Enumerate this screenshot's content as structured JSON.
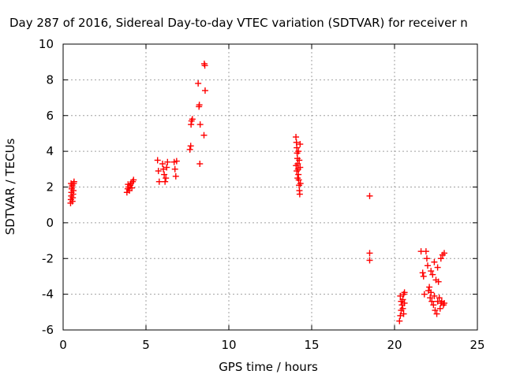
{
  "chart_data": {
    "type": "scatter",
    "title": "Day 287 of 2016, Sidereal Day-to-day VTEC variation (SDTVAR) for receiver n",
    "xlabel": "GPS time / hours",
    "ylabel": "SDTVAR / TECUs",
    "xlim": [
      0,
      25
    ],
    "ylim": [
      -6,
      10
    ],
    "xticks": [
      "0",
      "5",
      "10",
      "15",
      "20",
      "25"
    ],
    "yticks": [
      "-6",
      "-4",
      "-2",
      "0",
      "2",
      "4",
      "6",
      "8",
      "10"
    ],
    "grid": true,
    "marker_color": "#ff0000",
    "marker": "+",
    "series": [
      {
        "name": "SDTVAR",
        "points": [
          [
            0.45,
            1.1
          ],
          [
            0.47,
            1.3
          ],
          [
            0.49,
            1.5
          ],
          [
            0.5,
            1.7
          ],
          [
            0.52,
            1.9
          ],
          [
            0.53,
            2.0
          ],
          [
            0.55,
            2.1
          ],
          [
            0.56,
            1.2
          ],
          [
            0.58,
            1.4
          ],
          [
            0.6,
            1.6
          ],
          [
            0.62,
            1.8
          ],
          [
            0.64,
            2.2
          ],
          [
            0.66,
            2.3
          ],
          [
            0.48,
            2.2
          ],
          [
            3.85,
            1.7
          ],
          [
            3.9,
            1.9
          ],
          [
            3.95,
            2.0
          ],
          [
            4.0,
            1.8
          ],
          [
            4.05,
            2.1
          ],
          [
            4.1,
            2.2
          ],
          [
            4.15,
            1.95
          ],
          [
            4.2,
            2.3
          ],
          [
            4.25,
            2.4
          ],
          [
            3.92,
            2.15
          ],
          [
            5.7,
            3.5
          ],
          [
            5.75,
            2.9
          ],
          [
            5.8,
            2.3
          ],
          [
            6.0,
            3.3
          ],
          [
            6.05,
            3.0
          ],
          [
            6.1,
            2.7
          ],
          [
            6.15,
            2.3
          ],
          [
            6.2,
            2.5
          ],
          [
            6.25,
            3.1
          ],
          [
            6.3,
            3.4
          ],
          [
            6.7,
            3.4
          ],
          [
            6.75,
            3.0
          ],
          [
            6.8,
            2.6
          ],
          [
            6.85,
            3.45
          ],
          [
            7.65,
            4.1
          ],
          [
            7.7,
            4.3
          ],
          [
            7.72,
            5.5
          ],
          [
            7.75,
            5.7
          ],
          [
            7.8,
            5.8
          ],
          [
            8.15,
            7.8
          ],
          [
            8.2,
            6.5
          ],
          [
            8.22,
            6.6
          ],
          [
            8.25,
            3.3
          ],
          [
            8.27,
            5.5
          ],
          [
            8.5,
            4.9
          ],
          [
            8.52,
            8.9
          ],
          [
            8.55,
            8.8
          ],
          [
            8.57,
            7.4
          ],
          [
            14.05,
            4.8
          ],
          [
            14.08,
            4.5
          ],
          [
            14.1,
            4.2
          ],
          [
            14.12,
            3.9
          ],
          [
            14.14,
            3.6
          ],
          [
            14.16,
            3.3
          ],
          [
            14.18,
            3.0
          ],
          [
            14.2,
            2.7
          ],
          [
            14.22,
            2.4
          ],
          [
            14.24,
            2.1
          ],
          [
            14.26,
            1.8
          ],
          [
            14.28,
            1.6
          ],
          [
            14.3,
            4.4
          ],
          [
            14.06,
            3.2
          ],
          [
            14.1,
            2.9
          ],
          [
            14.15,
            2.5
          ],
          [
            14.2,
            4.0
          ],
          [
            14.25,
            3.5
          ],
          [
            14.3,
            3.1
          ],
          [
            14.32,
            2.2
          ],
          [
            18.5,
            1.5
          ],
          [
            18.5,
            -1.7
          ],
          [
            18.5,
            -2.1
          ],
          [
            20.3,
            -5.5
          ],
          [
            20.35,
            -5.2
          ],
          [
            20.4,
            -4.9
          ],
          [
            20.45,
            -4.6
          ],
          [
            20.5,
            -4.3
          ],
          [
            20.55,
            -4.0
          ],
          [
            20.6,
            -3.9
          ],
          [
            20.35,
            -4.1
          ],
          [
            20.4,
            -4.4
          ],
          [
            20.5,
            -4.8
          ],
          [
            20.55,
            -5.1
          ],
          [
            20.6,
            -4.5
          ],
          [
            21.6,
            -1.6
          ],
          [
            21.7,
            -2.8
          ],
          [
            21.75,
            -3.0
          ],
          [
            21.8,
            -4.0
          ],
          [
            21.9,
            -1.6
          ],
          [
            21.95,
            -2.0
          ],
          [
            22.0,
            -2.4
          ],
          [
            22.05,
            -3.8
          ],
          [
            22.1,
            -3.6
          ],
          [
            22.15,
            -4.2
          ],
          [
            22.2,
            -2.7
          ],
          [
            22.25,
            -4.4
          ],
          [
            22.3,
            -2.9
          ],
          [
            22.35,
            -4.6
          ],
          [
            22.4,
            -2.2
          ],
          [
            22.45,
            -4.9
          ],
          [
            22.5,
            -3.2
          ],
          [
            22.55,
            -5.1
          ],
          [
            22.6,
            -2.5
          ],
          [
            22.65,
            -3.3
          ],
          [
            22.7,
            -4.2
          ],
          [
            22.75,
            -4.8
          ],
          [
            22.8,
            -2.0
          ],
          [
            22.85,
            -4.4
          ],
          [
            22.9,
            -1.8
          ],
          [
            22.95,
            -4.6
          ],
          [
            23.0,
            -1.7
          ],
          [
            22.2,
            -3.9
          ],
          [
            22.4,
            -4.1
          ],
          [
            22.6,
            -4.4
          ],
          [
            22.8,
            -4.5
          ],
          [
            23.0,
            -4.5
          ]
        ]
      }
    ]
  }
}
